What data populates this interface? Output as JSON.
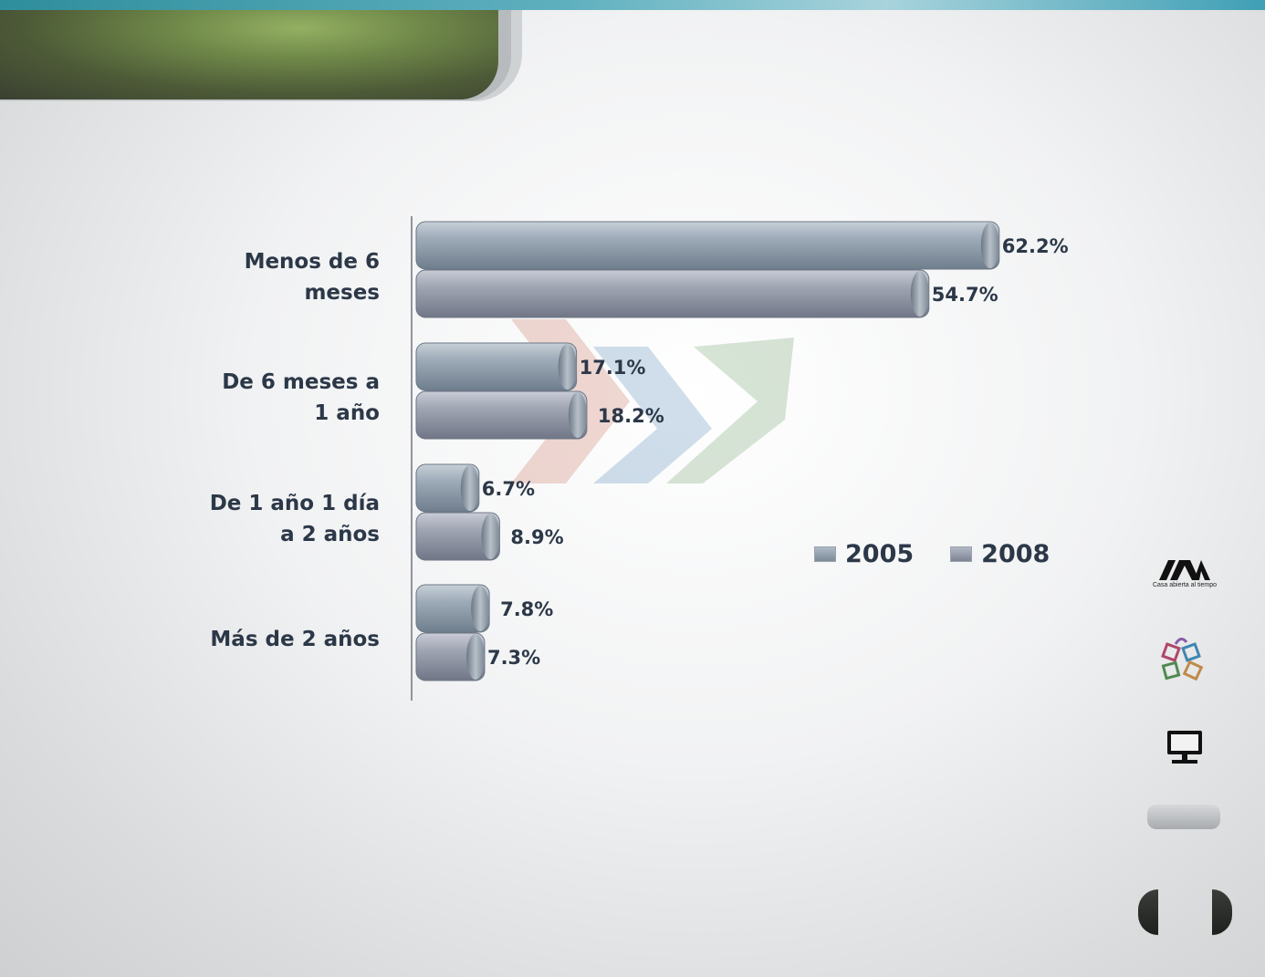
{
  "chart_data": {
    "type": "bar",
    "orientation": "horizontal",
    "categories": [
      "Menos de 6\nmeses",
      "De 6 meses a\n1 año",
      "De 1 año 1 día\na 2 años",
      "Más de 2 años"
    ],
    "series": [
      {
        "name": "2005",
        "values": [
          62.2,
          17.1,
          6.7,
          7.8
        ],
        "labels": [
          "62.2%",
          "17.1%",
          "6.7%",
          "7.8%"
        ]
      },
      {
        "name": "2008",
        "values": [
          54.7,
          18.2,
          8.9,
          7.3
        ],
        "labels": [
          "54.7%",
          "18.2%",
          "8.9%",
          "7.3%"
        ]
      }
    ],
    "xlim": [
      0,
      70
    ],
    "grid": false,
    "legend_position": "right"
  },
  "logos": {
    "uam_tagline": "Casa abierta al tiempo"
  },
  "icons": [
    "uam-logo-icon",
    "cubes-logo-icon",
    "monitor-icon"
  ],
  "colors": {
    "bar_2005": "#8796a5",
    "bar_2008": "#8a8f9e",
    "text": "#2c3848",
    "banner": "#6f8849"
  }
}
